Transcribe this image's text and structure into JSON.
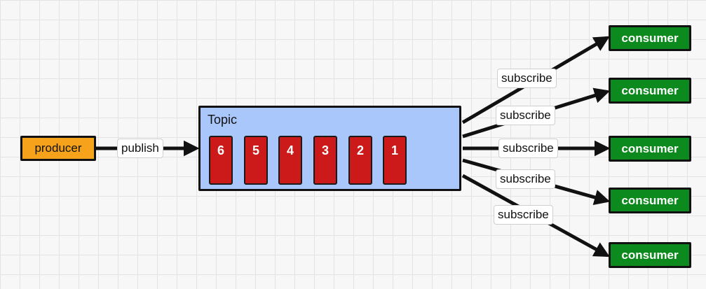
{
  "producer": {
    "label": "producer"
  },
  "publish": {
    "label": "publish"
  },
  "topic": {
    "label": "Topic",
    "messages": [
      "6",
      "5",
      "4",
      "3",
      "2",
      "1"
    ]
  },
  "subscriptions": [
    {
      "edge_label": "subscribe",
      "consumer_label": "consumer"
    },
    {
      "edge_label": "subscribe",
      "consumer_label": "consumer"
    },
    {
      "edge_label": "subscribe",
      "consumer_label": "consumer"
    },
    {
      "edge_label": "subscribe",
      "consumer_label": "consumer"
    },
    {
      "edge_label": "subscribe",
      "consumer_label": "consumer"
    }
  ],
  "colors": {
    "producer": "#f7a21b",
    "topic": "#a9c7fa",
    "message": "#cc1a1a",
    "consumer": "#0d8a1e",
    "arrow": "#111111"
  }
}
